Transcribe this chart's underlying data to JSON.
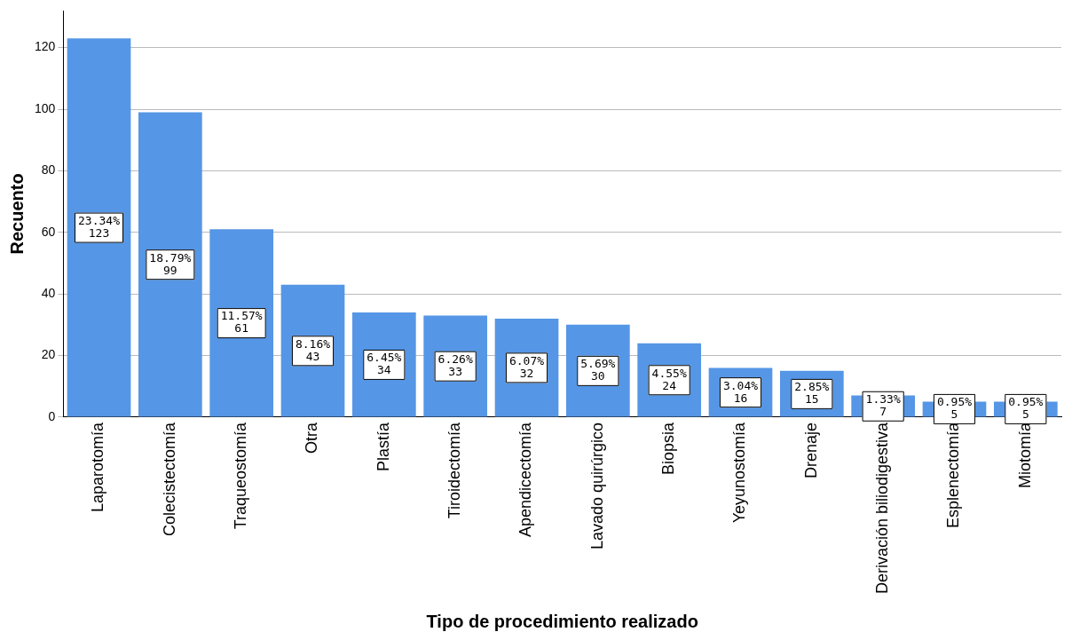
{
  "chart_data": {
    "type": "bar",
    "xlabel": "Tipo de procedimiento realizado",
    "ylabel": "Recuento",
    "categories": [
      "Laparotomía",
      "Colecistectomía",
      "Traqueostomía",
      "Otra",
      "Plastía",
      "Tiroidectomía",
      "Apendicectomía",
      "Lavado quirúrgico",
      "Biopsia",
      "Yeyunostomía",
      "Drenaje",
      "Derivación biliodigestiva",
      "Esplenectomía",
      "Miotomía"
    ],
    "values": [
      123,
      99,
      61,
      43,
      34,
      33,
      32,
      30,
      24,
      16,
      15,
      7,
      5,
      5
    ],
    "value_labels": [
      "23.34%\n123",
      "18.79%\n99",
      "11.57%\n61",
      "8.16%\n43",
      "6.45%\n34",
      "6.26%\n33",
      "6.07%\n32",
      "5.69%\n30",
      "4.55%\n24",
      "3.04%\n16",
      "2.85%\n15",
      "1.33%\n7",
      "0.95%\n5",
      "0.95%\n5"
    ],
    "color": "#5596e6",
    "ylim": [
      0,
      132
    ],
    "yticks": [
      0,
      20,
      40,
      60,
      80,
      100,
      120
    ],
    "grid": "y",
    "legend": false
  }
}
